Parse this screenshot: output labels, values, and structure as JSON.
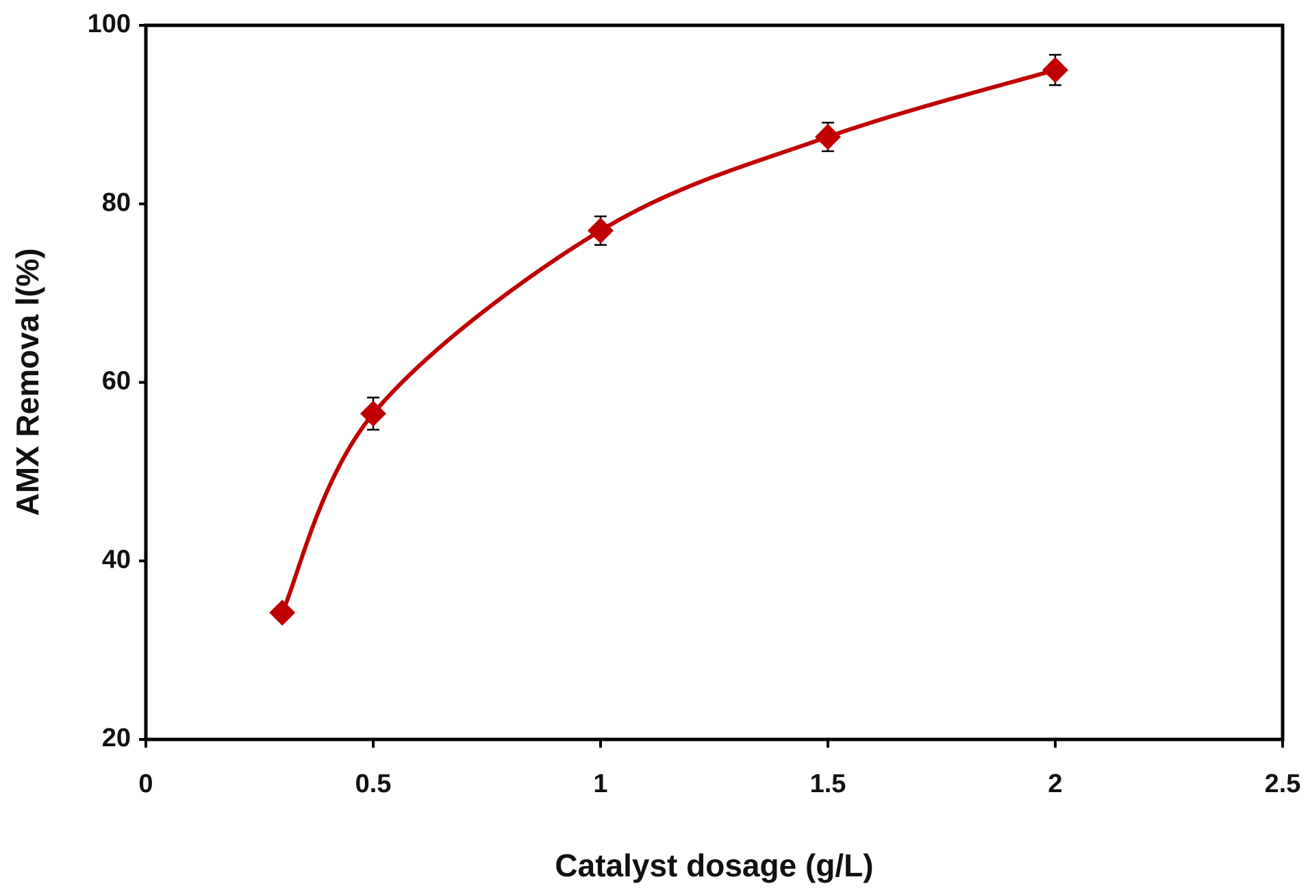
{
  "chart_data": {
    "type": "line",
    "xlabel": "Catalyst dosage (g/L)",
    "ylabel": "AMX  Remova l(%)",
    "x": [
      0.3,
      0.5,
      1,
      1.5,
      2
    ],
    "series": [
      {
        "color": "#c00000",
        "values": [
          34.2,
          56.5,
          77,
          87.5,
          95
        ],
        "errors": [
          null,
          1.8,
          1.6,
          1.6,
          1.7
        ]
      }
    ],
    "xlim": [
      0,
      2.5
    ],
    "xticks": [
      0,
      0.5,
      1,
      1.5,
      2,
      2.5
    ],
    "ylim": [
      20,
      100
    ],
    "yticks": [
      20,
      40,
      60,
      80,
      100
    ],
    "smooth": true
  }
}
